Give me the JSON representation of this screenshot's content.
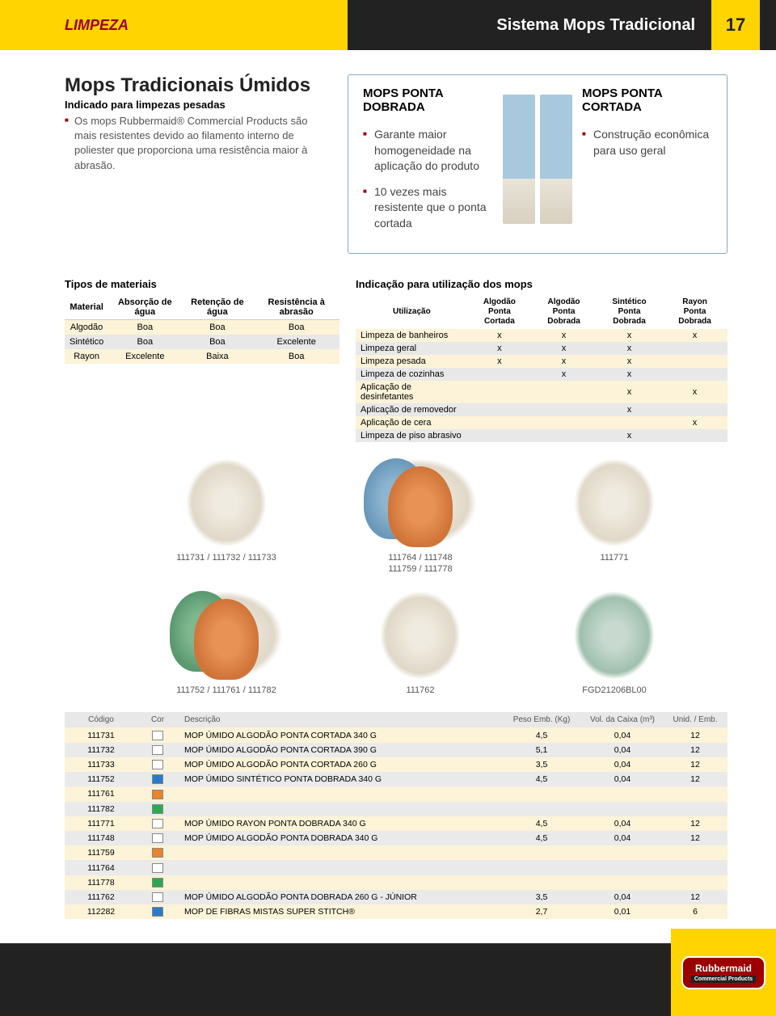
{
  "header": {
    "left_label": "LIMPEZA",
    "right_label": "Sistema Mops Tradicional",
    "page_number": "17"
  },
  "intro": {
    "title": "Mops Tradicionais Úmidos",
    "subtitle": "Indicado para limpezas pesadas",
    "description": "Os mops Rubbermaid® Commercial Products são mais resistentes devido ao filamento interno de poliester que proporciona uma resistência maior à abrasão."
  },
  "feature_box": {
    "col1": {
      "title": "MOPS PONTA DOBRADA",
      "point1": "Garante maior homogeneidade na aplicação do produto",
      "point2": "10 vezes mais resistente que o ponta cortada"
    },
    "col2": {
      "title": "MOPS PONTA CORTADA",
      "point1": "Construção econômica para uso geral"
    }
  },
  "materials_table": {
    "title": "Tipos de materiais",
    "headers": {
      "h1": "Material",
      "h2": "Absorção de água",
      "h3": "Retenção de água",
      "h4": "Resistência à abrasão"
    },
    "rows": [
      {
        "c1": "Algodão",
        "c2": "Boa",
        "c3": "Boa",
        "c4": "Boa",
        "cls": "ylw"
      },
      {
        "c1": "Sintético",
        "c2": "Boa",
        "c3": "Boa",
        "c4": "Excelente",
        "cls": "alt"
      },
      {
        "c1": "Rayon",
        "c2": "Excelente",
        "c3": "Baixa",
        "c4": "Boa",
        "cls": "ylw"
      }
    ]
  },
  "usage_table": {
    "title": "Indicação para utilização dos mops",
    "headers": {
      "h1": "Utilização",
      "h2a": "Algodão",
      "h2b": "Ponta Cortada",
      "h3a": "Algodão",
      "h3b": "Ponta Dobrada",
      "h4a": "Sintético",
      "h4b": "Ponta Dobrada",
      "h5a": "Rayon",
      "h5b": "Ponta Dobrada"
    },
    "rows": [
      {
        "c1": "Limpeza de banheiros",
        "c2": "x",
        "c3": "x",
        "c4": "x",
        "c5": "x",
        "cls": "ylw"
      },
      {
        "c1": "Limpeza geral",
        "c2": "x",
        "c3": "x",
        "c4": "x",
        "c5": "",
        "cls": "gry"
      },
      {
        "c1": "Limpeza pesada",
        "c2": "x",
        "c3": "x",
        "c4": "x",
        "c5": "",
        "cls": "ylw"
      },
      {
        "c1": "Limpeza de cozinhas",
        "c2": "",
        "c3": "x",
        "c4": "x",
        "c5": "",
        "cls": "gry"
      },
      {
        "c1": "Aplicação de desinfetantes",
        "c2": "",
        "c3": "",
        "c4": "x",
        "c5": "x",
        "cls": "ylw"
      },
      {
        "c1": "Aplicação de removedor",
        "c2": "",
        "c3": "",
        "c4": "x",
        "c5": "",
        "cls": "gry"
      },
      {
        "c1": "Aplicação de cera",
        "c2": "",
        "c3": "",
        "c4": "",
        "c5": "x",
        "cls": "ylw"
      },
      {
        "c1": "Limpeza de piso abrasivo",
        "c2": "",
        "c3": "",
        "c4": "x",
        "c5": "",
        "cls": "gry"
      }
    ]
  },
  "product_images": {
    "row1": [
      {
        "label": "111731 / 111732 / 111733"
      },
      {
        "label": "111764 / 111748\n111759 / 111778"
      },
      {
        "label": "111771"
      }
    ],
    "row2": [
      {
        "label": "111752 / 111761 / 111782"
      },
      {
        "label": "111762"
      },
      {
        "label": "FGD21206BL00"
      }
    ]
  },
  "products_table": {
    "headers": {
      "h1": "Código",
      "h2": "Cor",
      "h3": "Descrição",
      "h4": "Peso Emb. (Kg)",
      "h5": "Vol. da Caixa (m³)",
      "h6": "Unid. / Emb."
    },
    "rows": [
      {
        "code": "111731",
        "color": "#ffffff",
        "desc": "MOP ÚMIDO ALGODÃO PONTA CORTADA 340 G",
        "peso": "4,5",
        "vol": "0,04",
        "unid": "12",
        "cls": "ylw"
      },
      {
        "code": "111732",
        "color": "#ffffff",
        "desc": "MOP ÚMIDO ALGODÃO PONTA CORTADA 390 G",
        "peso": "5,1",
        "vol": "0,04",
        "unid": "12",
        "cls": "gry"
      },
      {
        "code": "111733",
        "color": "#ffffff",
        "desc": "MOP ÚMIDO ALGODÃO PONTA CORTADA 260 G",
        "peso": "3,5",
        "vol": "0,04",
        "unid": "12",
        "cls": "ylw"
      },
      {
        "code": "111752",
        "color": "#2a7ac8",
        "desc": "MOP ÚMIDO SINTÉTICO PONTA DOBRADA 340 G",
        "peso": "4,5",
        "vol": "0,04",
        "unid": "12",
        "cls": "gry"
      },
      {
        "code": "111761",
        "color": "#e8842c",
        "desc": "",
        "peso": "",
        "vol": "",
        "unid": "",
        "cls": "ylw"
      },
      {
        "code": "111782",
        "color": "#2ea850",
        "desc": "",
        "peso": "",
        "vol": "",
        "unid": "",
        "cls": "gry"
      },
      {
        "code": "111771",
        "color": "#ffffff",
        "desc": "MOP ÚMIDO RAYON PONTA DOBRADA 340 G",
        "peso": "4,5",
        "vol": "0,04",
        "unid": "12",
        "cls": "ylw"
      },
      {
        "code": "111748",
        "color": "#ffffff",
        "desc": "MOP ÚMIDO ALGODÃO PONTA DOBRADA 340 G",
        "peso": "4,5",
        "vol": "0,04",
        "unid": "12",
        "cls": "gry"
      },
      {
        "code": "111759",
        "color": "#e8842c",
        "desc": "",
        "peso": "",
        "vol": "",
        "unid": "",
        "cls": "ylw"
      },
      {
        "code": "111764",
        "color": "#ffffff",
        "desc": "",
        "peso": "",
        "vol": "",
        "unid": "",
        "cls": "gry"
      },
      {
        "code": "111778",
        "color": "#2ea850",
        "desc": "",
        "peso": "",
        "vol": "",
        "unid": "",
        "cls": "ylw"
      },
      {
        "code": "111762",
        "color": "#ffffff",
        "desc": "MOP ÚMIDO ALGODÃO PONTA DOBRADA 260 G - JÚNIOR",
        "peso": "3,5",
        "vol": "0,04",
        "unid": "12",
        "cls": "gry"
      },
      {
        "code": "112282",
        "color": "#2a7ac8",
        "desc": "MOP DE FIBRAS MISTAS SUPER STITCH®",
        "peso": "2,7",
        "vol": "0,01",
        "unid": "6",
        "cls": "ylw"
      }
    ]
  },
  "footer": {
    "brand": "Rubbermaid",
    "sub": "Commercial Products"
  }
}
